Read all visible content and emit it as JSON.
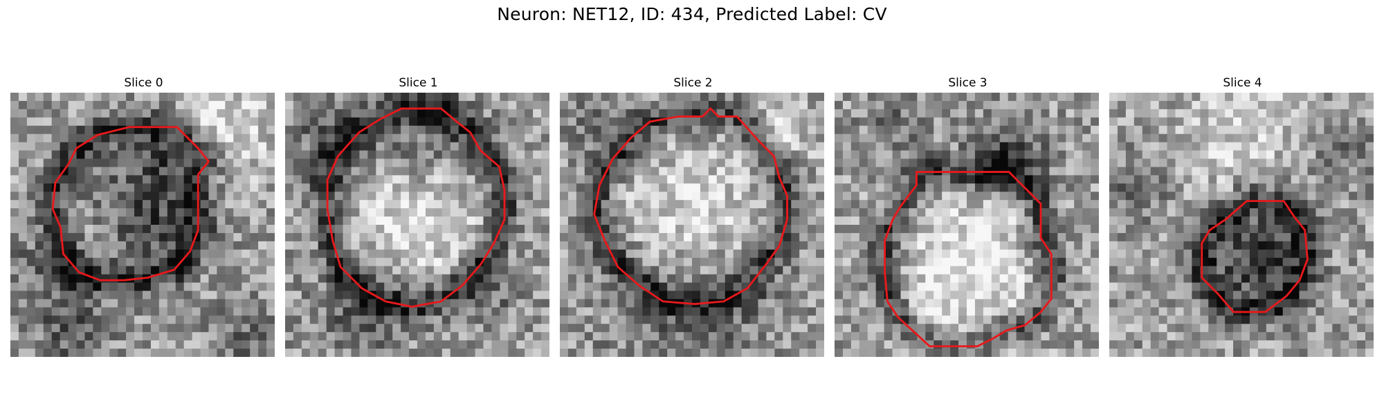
{
  "figure": {
    "title": "Neuron: NET12, ID: 434, Predicted Label: CV"
  },
  "contour_color": "#e8191c",
  "panels": [
    {
      "title": "Slice 0",
      "contour": [
        [
          4.5,
          1.3
        ],
        [
          6.3,
          1.3
        ],
        [
          7.1,
          2.1
        ],
        [
          7.5,
          2.6
        ],
        [
          7.1,
          3.1
        ],
        [
          7.1,
          5.2
        ],
        [
          6.8,
          6.0
        ],
        [
          6.2,
          6.7
        ],
        [
          5.2,
          7.0
        ],
        [
          4.3,
          7.1
        ],
        [
          3.4,
          7.1
        ],
        [
          2.6,
          6.8
        ],
        [
          2.0,
          6.1
        ],
        [
          1.9,
          5.1
        ],
        [
          1.6,
          4.4
        ],
        [
          1.7,
          3.4
        ],
        [
          2.2,
          2.7
        ],
        [
          2.5,
          2.1
        ],
        [
          3.3,
          1.6
        ]
      ],
      "grain": 3,
      "bias": [
        [
          5,
          4.5,
          2.2,
          -0.35
        ],
        [
          3.1,
          5.1,
          1.3,
          0.15
        ],
        [
          6.0,
          2.4,
          1.0,
          -0.25
        ],
        [
          8.2,
          1.5,
          1.8,
          0.25
        ],
        [
          1.3,
          6.6,
          1.5,
          -0.2
        ],
        [
          2.3,
          8.9,
          1.5,
          -0.25
        ],
        [
          8.9,
          9.3,
          1.4,
          -0.2
        ]
      ]
    },
    {
      "title": "Slice 1",
      "contour": [
        [
          4.4,
          0.6
        ],
        [
          5.9,
          0.6
        ],
        [
          6.5,
          1.1
        ],
        [
          7.0,
          1.5
        ],
        [
          7.4,
          2.2
        ],
        [
          8.1,
          2.8
        ],
        [
          8.3,
          3.7
        ],
        [
          8.3,
          4.8
        ],
        [
          7.9,
          5.7
        ],
        [
          7.4,
          6.5
        ],
        [
          6.7,
          7.3
        ],
        [
          5.9,
          7.9
        ],
        [
          4.8,
          8.1
        ],
        [
          3.8,
          7.9
        ],
        [
          2.9,
          7.4
        ],
        [
          2.1,
          6.6
        ],
        [
          1.8,
          5.6
        ],
        [
          1.6,
          4.4
        ],
        [
          1.6,
          3.3
        ],
        [
          2.0,
          2.4
        ],
        [
          2.8,
          1.5
        ],
        [
          3.6,
          1.0
        ]
      ],
      "grain": 7,
      "bias": [
        [
          5,
          4.5,
          2.4,
          0.35
        ],
        [
          5.2,
          2.1,
          2.2,
          -0.25
        ],
        [
          3.0,
          8.1,
          1.8,
          -0.25
        ],
        [
          1.7,
          1.8,
          1.4,
          -0.25
        ],
        [
          7.6,
          7.6,
          1.3,
          -0.2
        ]
      ]
    },
    {
      "title": "Slice 2",
      "contour": [
        [
          5.7,
          0.6
        ],
        [
          6.0,
          0.9
        ],
        [
          6.7,
          0.9
        ],
        [
          7.5,
          1.8
        ],
        [
          8.1,
          2.4
        ],
        [
          8.3,
          3.2
        ],
        [
          8.6,
          3.9
        ],
        [
          8.6,
          4.8
        ],
        [
          8.3,
          5.8
        ],
        [
          7.8,
          6.5
        ],
        [
          7.1,
          7.4
        ],
        [
          6.2,
          7.9
        ],
        [
          5.1,
          8.0
        ],
        [
          3.9,
          7.9
        ],
        [
          3.0,
          7.3
        ],
        [
          2.2,
          6.6
        ],
        [
          1.7,
          5.6
        ],
        [
          1.3,
          4.6
        ],
        [
          1.5,
          3.5
        ],
        [
          2.0,
          2.5
        ],
        [
          2.7,
          1.7
        ],
        [
          3.4,
          1.1
        ],
        [
          4.5,
          0.9
        ],
        [
          5.4,
          0.9
        ]
      ],
      "grain": 11,
      "bias": [
        [
          5,
          4.6,
          2.5,
          0.28
        ],
        [
          5.0,
          8.2,
          3.2,
          -0.2
        ],
        [
          8.4,
          1.5,
          1.2,
          0.2
        ],
        [
          1.3,
          1.2,
          1.4,
          -0.15
        ]
      ]
    },
    {
      "title": "Slice 3",
      "contour": [
        [
          3.1,
          3.0
        ],
        [
          6.6,
          3.0
        ],
        [
          7.8,
          4.2
        ],
        [
          7.8,
          5.5
        ],
        [
          8.2,
          6.1
        ],
        [
          8.2,
          7.8
        ],
        [
          7.8,
          8.3
        ],
        [
          7.2,
          8.8
        ],
        [
          6.5,
          9.0
        ],
        [
          6.0,
          9.3
        ],
        [
          5.4,
          9.6
        ],
        [
          3.6,
          9.6
        ],
        [
          2.4,
          8.5
        ],
        [
          2.0,
          7.9
        ],
        [
          1.9,
          6.8
        ],
        [
          1.9,
          5.6
        ],
        [
          2.2,
          4.8
        ],
        [
          2.5,
          4.3
        ],
        [
          3.1,
          3.5
        ]
      ],
      "grain": 17,
      "bias": [
        [
          5.1,
          6.1,
          2.4,
          0.3
        ],
        [
          6.6,
          2.4,
          1.5,
          -0.35
        ],
        [
          2.3,
          1.0,
          1.3,
          -0.15
        ],
        [
          5,
          9.6,
          2.6,
          0.15
        ]
      ]
    },
    {
      "title": "Slice 4",
      "contour": [
        [
          5.2,
          4.1
        ],
        [
          6.6,
          4.1
        ],
        [
          7.0,
          4.7
        ],
        [
          7.4,
          5.2
        ],
        [
          7.5,
          6.3
        ],
        [
          7.2,
          7.1
        ],
        [
          6.7,
          7.7
        ],
        [
          5.9,
          8.3
        ],
        [
          4.7,
          8.3
        ],
        [
          4.1,
          7.6
        ],
        [
          3.5,
          7.0
        ],
        [
          3.5,
          5.7
        ],
        [
          3.8,
          5.2
        ],
        [
          4.4,
          4.8
        ]
      ],
      "grain": 23,
      "bias": [
        [
          5.6,
          6.2,
          1.7,
          -0.4
        ],
        [
          1.2,
          3.5,
          1.2,
          -0.2
        ],
        [
          8.9,
          2.3,
          1.4,
          -0.15
        ],
        [
          5,
          1.5,
          2.5,
          0.2
        ]
      ]
    }
  ]
}
